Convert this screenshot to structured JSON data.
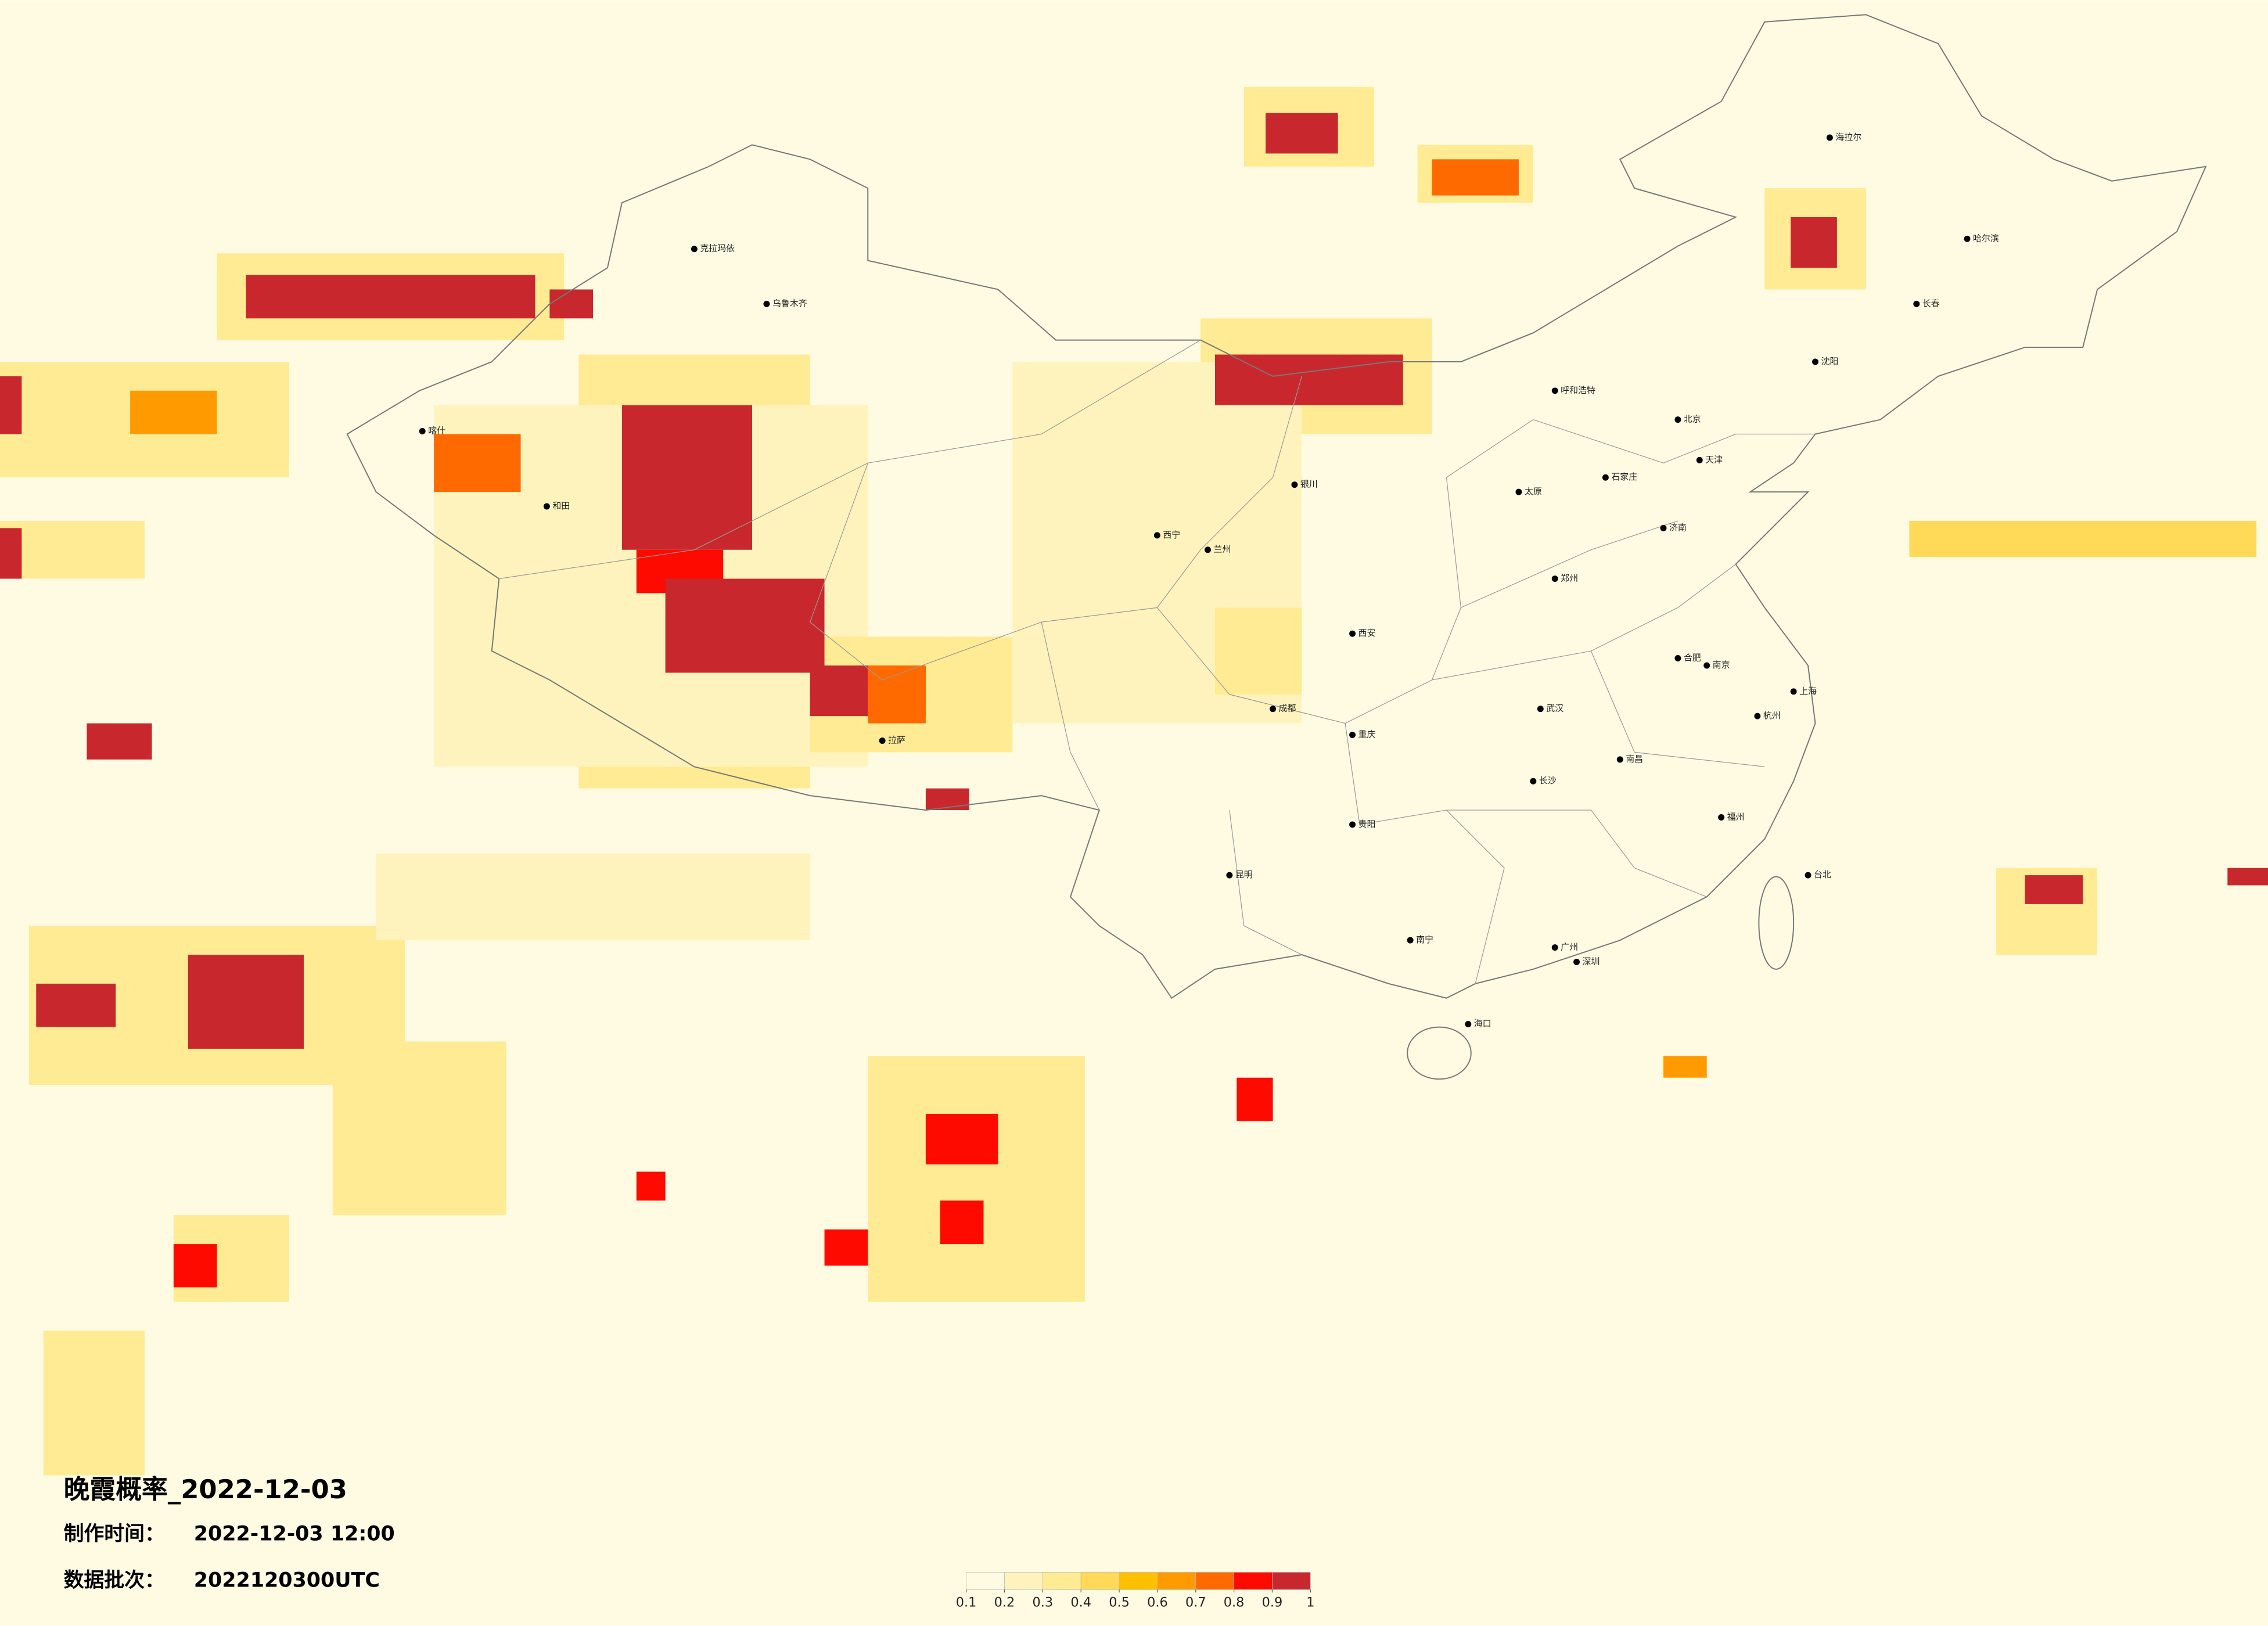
{
  "header": {
    "title": "晚霞概率_2022-12-03",
    "made_label": "制作时间：",
    "made_value": "2022-12-03 12:00",
    "batch_label": "数据批次：",
    "batch_value": "2022120300UTC"
  },
  "colorbar": {
    "ticks": [
      0.1,
      0.2,
      0.3,
      0.4,
      0.5,
      0.6,
      0.7,
      0.8,
      0.9,
      1
    ],
    "colors": [
      "#fffbe3",
      "#fff3bd",
      "#ffeb94",
      "#ffd957",
      "#ffc000",
      "#ff9b00",
      "#ff6a00",
      "#ff0a00",
      "#c8282d"
    ]
  },
  "cities": [
    "北京",
    "天津",
    "上海",
    "广州",
    "深圳",
    "重庆",
    "成都",
    "西安",
    "武汉",
    "长沙",
    "南京",
    "杭州",
    "郑州",
    "济南",
    "沈阳",
    "哈尔滨",
    "长春",
    "昆明",
    "贵阳",
    "南宁",
    "拉萨",
    "兰州",
    "西宁",
    "银川",
    "呼和浩特",
    "乌鲁木齐",
    "太原",
    "石家庄",
    "福州",
    "南昌",
    "合肥",
    "海口",
    "台北",
    "克拉玛依",
    "喀什",
    "和田",
    "海拉尔"
  ]
}
